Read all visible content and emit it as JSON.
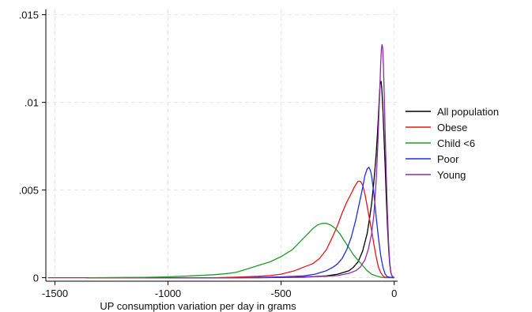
{
  "chart_data": {
    "type": "line",
    "title": "",
    "xlabel": "UP consumption variation per day in grams",
    "ylabel": "",
    "xlim": [
      -1540,
      15
    ],
    "ylim": [
      -0.0002,
      0.0153
    ],
    "grid": true,
    "legend_position": "right",
    "x_ticks": [
      {
        "value": -1500,
        "label": "-1500"
      },
      {
        "value": -1000,
        "label": "-1000"
      },
      {
        "value": -500,
        "label": "-500"
      },
      {
        "value": 0,
        "label": "0"
      }
    ],
    "y_ticks": [
      {
        "value": 0,
        "label": "0"
      },
      {
        "value": 0.005,
        "label": ".005"
      },
      {
        "value": 0.01,
        "label": ".01"
      },
      {
        "value": 0.015,
        "label": ".015"
      }
    ],
    "series": [
      {
        "name": "All population",
        "color": "#000000",
        "points": [
          [
            -1360,
            0
          ],
          [
            -600,
            0
          ],
          [
            -400,
            3e-05
          ],
          [
            -300,
            0.0001
          ],
          [
            -250,
            0.0002
          ],
          [
            -200,
            0.0004
          ],
          [
            -180,
            0.0006
          ],
          [
            -160,
            0.0009
          ],
          [
            -140,
            0.0015
          ],
          [
            -120,
            0.0025
          ],
          [
            -110,
            0.0033
          ],
          [
            -100,
            0.0042
          ],
          [
            -90,
            0.0055
          ],
          [
            -80,
            0.007
          ],
          [
            -75,
            0.008
          ],
          [
            -70,
            0.0092
          ],
          [
            -65,
            0.0105
          ],
          [
            -62,
            0.0111
          ],
          [
            -58,
            0.0112
          ],
          [
            -55,
            0.0108
          ],
          [
            -50,
            0.0096
          ],
          [
            -45,
            0.008
          ],
          [
            -40,
            0.0063
          ],
          [
            -35,
            0.0045
          ],
          [
            -30,
            0.003
          ],
          [
            -25,
            0.0017
          ],
          [
            -20,
            0.0008
          ],
          [
            -15,
            0.0003
          ],
          [
            -10,
            0.0001
          ],
          [
            0,
            0
          ]
        ]
      },
      {
        "name": "Obese",
        "color": "#e8141b",
        "points": [
          [
            -1530,
            0
          ],
          [
            -800,
            0
          ],
          [
            -700,
            3e-05
          ],
          [
            -600,
            8e-05
          ],
          [
            -550,
            0.00012
          ],
          [
            -500,
            0.0002
          ],
          [
            -470,
            0.0003
          ],
          [
            -440,
            0.0004
          ],
          [
            -400,
            0.0006
          ],
          [
            -360,
            0.0008
          ],
          [
            -330,
            0.0011
          ],
          [
            -300,
            0.0016
          ],
          [
            -270,
            0.0024
          ],
          [
            -250,
            0.003
          ],
          [
            -230,
            0.0037
          ],
          [
            -210,
            0.0043
          ],
          [
            -190,
            0.0048
          ],
          [
            -175,
            0.0052
          ],
          [
            -160,
            0.0055
          ],
          [
            -150,
            0.0055
          ],
          [
            -140,
            0.0053
          ],
          [
            -130,
            0.0048
          ],
          [
            -120,
            0.0041
          ],
          [
            -110,
            0.0034
          ],
          [
            -100,
            0.0027
          ],
          [
            -90,
            0.0019
          ],
          [
            -80,
            0.0012
          ],
          [
            -70,
            0.0006
          ],
          [
            -60,
            0.0003
          ],
          [
            -50,
            0.0001
          ],
          [
            -40,
            3e-05
          ],
          [
            0,
            0
          ]
        ]
      },
      {
        "name": "Child <6",
        "color": "#1f9a28",
        "points": [
          [
            -1350,
            0
          ],
          [
            -1200,
            1e-05
          ],
          [
            -1100,
            2e-05
          ],
          [
            -1000,
            5e-05
          ],
          [
            -900,
            0.0001
          ],
          [
            -800,
            0.00017
          ],
          [
            -750,
            0.00022
          ],
          [
            -700,
            0.0003
          ],
          [
            -650,
            0.0005
          ],
          [
            -600,
            0.0007
          ],
          [
            -550,
            0.0009
          ],
          [
            -500,
            0.0012
          ],
          [
            -450,
            0.0016
          ],
          [
            -420,
            0.002
          ],
          [
            -390,
            0.0024
          ],
          [
            -360,
            0.0028
          ],
          [
            -340,
            0.003
          ],
          [
            -320,
            0.0031
          ],
          [
            -300,
            0.0031
          ],
          [
            -280,
            0.003
          ],
          [
            -260,
            0.0028
          ],
          [
            -240,
            0.0025
          ],
          [
            -220,
            0.0021
          ],
          [
            -200,
            0.0017
          ],
          [
            -180,
            0.0013
          ],
          [
            -160,
            0.001
          ],
          [
            -140,
            0.0007
          ],
          [
            -120,
            0.0004
          ],
          [
            -100,
            0.0002
          ],
          [
            -80,
            0.0001
          ],
          [
            -60,
            3e-05
          ],
          [
            -40,
            0
          ],
          [
            0,
            0
          ]
        ]
      },
      {
        "name": "Poor",
        "color": "#1a2fe6",
        "points": [
          [
            -1000,
            0
          ],
          [
            -700,
            0
          ],
          [
            -600,
            2e-05
          ],
          [
            -500,
            5e-05
          ],
          [
            -400,
            0.0001
          ],
          [
            -350,
            0.0002
          ],
          [
            -300,
            0.0004
          ],
          [
            -270,
            0.0006
          ],
          [
            -250,
            0.0008
          ],
          [
            -230,
            0.0011
          ],
          [
            -210,
            0.0016
          ],
          [
            -190,
            0.0023
          ],
          [
            -170,
            0.0033
          ],
          [
            -160,
            0.0039
          ],
          [
            -150,
            0.0045
          ],
          [
            -140,
            0.0051
          ],
          [
            -130,
            0.0058
          ],
          [
            -120,
            0.0062
          ],
          [
            -112,
            0.0063
          ],
          [
            -105,
            0.0061
          ],
          [
            -100,
            0.0058
          ],
          [
            -90,
            0.0048
          ],
          [
            -80,
            0.0035
          ],
          [
            -70,
            0.0023
          ],
          [
            -60,
            0.0013
          ],
          [
            -50,
            0.0006
          ],
          [
            -40,
            0.0002
          ],
          [
            -30,
            5e-05
          ],
          [
            0,
            0
          ]
        ]
      },
      {
        "name": "Young",
        "color": "#8e2aa8",
        "points": [
          [
            -1100,
            0
          ],
          [
            -700,
            0
          ],
          [
            -500,
            2e-05
          ],
          [
            -400,
            5e-05
          ],
          [
            -300,
            8e-05
          ],
          [
            -250,
            0.00012
          ],
          [
            -200,
            0.00025
          ],
          [
            -170,
            0.0004
          ],
          [
            -150,
            0.0006
          ],
          [
            -130,
            0.001
          ],
          [
            -115,
            0.0016
          ],
          [
            -100,
            0.0025
          ],
          [
            -90,
            0.0036
          ],
          [
            -80,
            0.0055
          ],
          [
            -75,
            0.0068
          ],
          [
            -70,
            0.0085
          ],
          [
            -65,
            0.0103
          ],
          [
            -60,
            0.0121
          ],
          [
            -57,
            0.013
          ],
          [
            -54,
            0.0133
          ],
          [
            -51,
            0.0131
          ],
          [
            -48,
            0.0122
          ],
          [
            -44,
            0.0104
          ],
          [
            -40,
            0.0082
          ],
          [
            -35,
            0.0058
          ],
          [
            -30,
            0.0037
          ],
          [
            -25,
            0.002
          ],
          [
            -20,
            0.0009
          ],
          [
            -15,
            0.0003
          ],
          [
            -10,
            0.0001
          ],
          [
            0,
            0
          ]
        ]
      }
    ]
  }
}
